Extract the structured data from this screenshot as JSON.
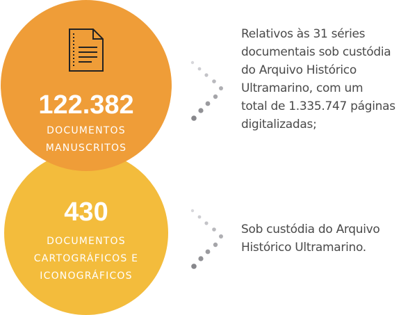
{
  "items": [
    {
      "number": "122.382",
      "label": [
        "DOCUMENTOS",
        "MANUSCRITOS"
      ],
      "description": [
        "Relativos às 31 séries",
        "documentais sob custódia",
        "do Arquivo Histórico",
        "Ultramarino, com um",
        "total de 1.335.747 páginas",
        "digitalizadas;"
      ]
    },
    {
      "number": "430",
      "label": [
        "DOCUMENTOS",
        "CARTOGRÁFICOS E",
        "ICONOGRÁFICOS"
      ],
      "description": [
        "Sob custódia do Arquivo",
        "Histórico Ultramarino."
      ]
    }
  ]
}
